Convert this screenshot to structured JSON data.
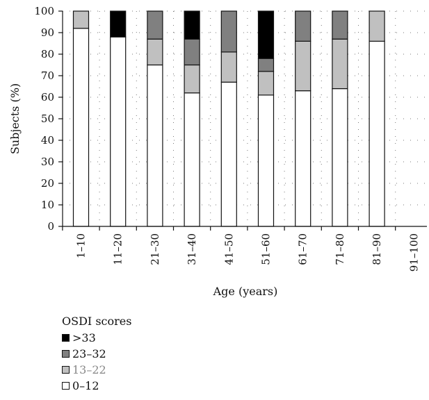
{
  "chart_data": {
    "type": "bar",
    "stacked": true,
    "xlabel": "Age (years)",
    "ylabel": "Subjects (%)",
    "ylim": [
      0,
      100
    ],
    "yticks": [
      "0",
      "10",
      "20",
      "30",
      "40",
      "50",
      "60",
      "70",
      "80",
      "90",
      "100"
    ],
    "grid": true,
    "categories": [
      "1–10",
      "11–20",
      "21–30",
      "31–40",
      "41–50",
      "51–60",
      "61–70",
      "71–80",
      "81–90",
      "91–100"
    ],
    "series": [
      {
        "name": "0–12",
        "color": "#ffffff",
        "values": [
          92,
          88,
          75,
          62,
          67,
          61,
          63,
          64,
          86,
          0
        ]
      },
      {
        "name": "13–22",
        "color": "#c0c0c0",
        "values": [
          8,
          0,
          12,
          13,
          14,
          11,
          23,
          23,
          14,
          0
        ]
      },
      {
        "name": "23–32",
        "color": "#808080",
        "values": [
          0,
          0,
          13,
          12,
          19,
          6,
          14,
          13,
          0,
          0
        ]
      },
      {
        "name": ">33",
        "color": "#000000",
        "values": [
          0,
          12,
          0,
          13,
          0,
          22,
          0,
          0,
          0,
          0
        ]
      }
    ],
    "legend": {
      "title": "OSDI scores",
      "position": "bottom-left",
      "items": [
        {
          "label": ">33",
          "color": "#000000"
        },
        {
          "label": "23–32",
          "color": "#808080"
        },
        {
          "label": "13–22",
          "color": "#c0c0c0"
        },
        {
          "label": "0–12",
          "color": "#ffffff"
        }
      ]
    }
  }
}
